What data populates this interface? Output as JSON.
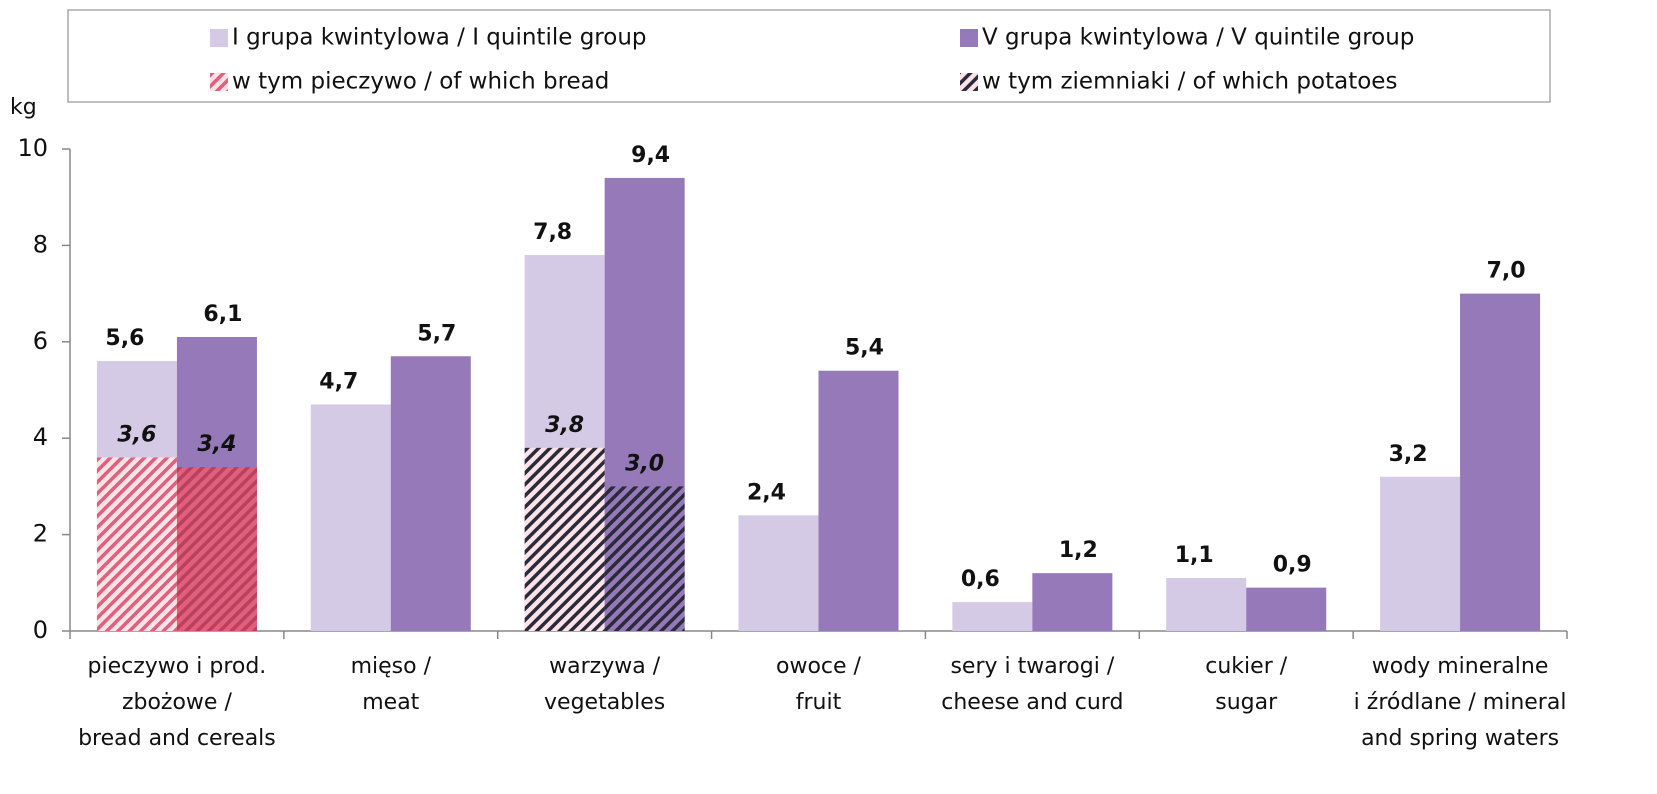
{
  "chart_data": {
    "type": "bar",
    "y_label": "kg",
    "categories": [
      [
        "pieczywo i prod.",
        "zbożowe /",
        "bread and cereals"
      ],
      [
        "mięso /",
        "meat"
      ],
      [
        "warzywa /",
        "vegetables"
      ],
      [
        "owoce /",
        "fruit"
      ],
      [
        "sery i twarogi /",
        "cheese and curd"
      ],
      [
        "cukier /",
        "sugar"
      ],
      [
        "wody mineralne",
        "i źródlane / mineral",
        "and spring waters"
      ]
    ],
    "series": [
      {
        "name": "I grupa kwintylowa / I quintile group",
        "color": "#d5cae5",
        "values": [
          5.6,
          4.7,
          7.8,
          2.4,
          0.6,
          1.1,
          3.2
        ],
        "value_labels": [
          "5,6",
          "4,7",
          "7,8",
          "2,4",
          "0,6",
          "1,1",
          "3,2"
        ]
      },
      {
        "name": "V grupa kwintylowa / V quintile group",
        "color": "#9579b8",
        "values": [
          6.1,
          5.7,
          9.4,
          5.4,
          1.2,
          0.9,
          7.0
        ],
        "value_labels": [
          "6,1",
          "5,7",
          "9,4",
          "5,4",
          "1,2",
          "0,9",
          "7,0"
        ]
      }
    ],
    "overlays": [
      {
        "name": "w tym pieczywo / of which bread",
        "color": "#e0607c",
        "values": [
          [
            3.6,
            null,
            null,
            null,
            null,
            null,
            null
          ],
          [
            3.4,
            null,
            null,
            null,
            null,
            null,
            null
          ]
        ],
        "value_labels": [
          [
            "3,6",
            null,
            null,
            null,
            null,
            null,
            null
          ],
          [
            "3,4",
            null,
            null,
            null,
            null,
            null,
            null
          ]
        ]
      },
      {
        "name": "w tym ziemniaki / of which potatoes",
        "color": "#2a2a3a",
        "values": [
          [
            null,
            null,
            3.8,
            null,
            null,
            null,
            null
          ],
          [
            null,
            null,
            3.0,
            null,
            null,
            null,
            null
          ]
        ],
        "value_labels": [
          [
            null,
            null,
            "3,8",
            null,
            null,
            null,
            null
          ],
          [
            null,
            null,
            "3,0",
            null,
            null,
            null,
            null
          ]
        ]
      }
    ],
    "ylim": [
      0,
      10
    ],
    "yticks": [
      0,
      2,
      4,
      6,
      8,
      10
    ]
  }
}
